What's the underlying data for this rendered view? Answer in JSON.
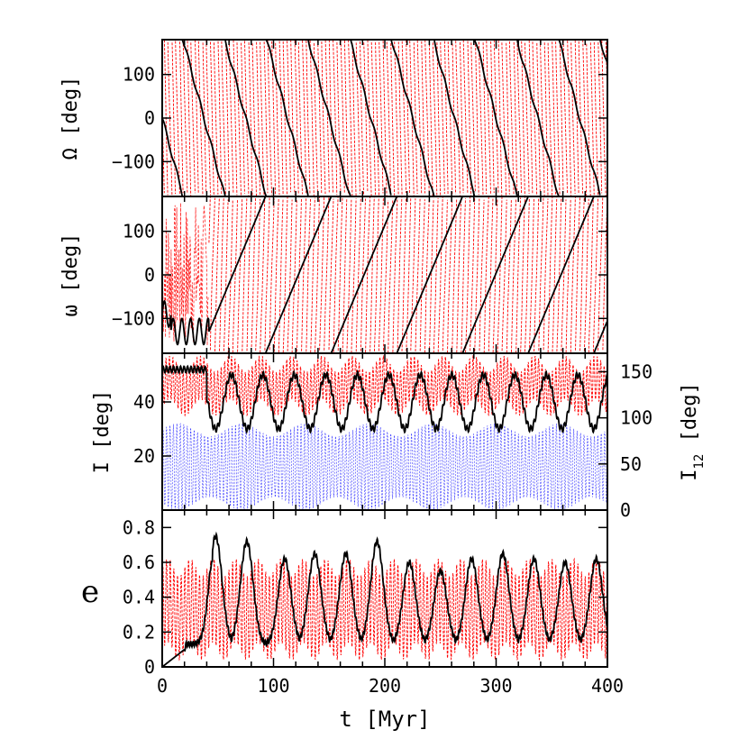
{
  "chart_data": [
    {
      "type": "line",
      "panel": "Omega",
      "ylabel": "Ω [deg]",
      "xlim": [
        0,
        400
      ],
      "ylim": [
        -180,
        180
      ],
      "yticks": [
        -100,
        0,
        100
      ],
      "ytick_labels": [
        "−100",
        "0",
        "100"
      ],
      "series": [
        {
          "name": "planet-1 node (black)",
          "color": "#000000",
          "kind": "wrap-decreasing",
          "start": 0,
          "period": 37.5,
          "values_desc": "circulates from +180 to -180 every ~37.5 Myr"
        },
        {
          "name": "planet-2 node (red)",
          "color": "#ff0000",
          "kind": "wrap-dense",
          "values_desc": "fast circulation, period ~3.5 Myr"
        }
      ]
    },
    {
      "type": "line",
      "panel": "omega",
      "ylabel": "ω [deg]",
      "xlim": [
        0,
        400
      ],
      "ylim": [
        -180,
        180
      ],
      "yticks": [
        -100,
        0,
        100
      ],
      "ytick_labels": [
        "−100",
        "0",
        "100"
      ],
      "series": [
        {
          "name": "planet-1 argument of pericenter (black)",
          "color": "#000000",
          "kind": "wrap-increasing",
          "values_desc": "librates near -130 until ~40 Myr then circulates upward every ~59 Myr"
        },
        {
          "name": "planet-2 argument of pericenter (red)",
          "color": "#ff0000",
          "kind": "wrap-dense"
        }
      ]
    },
    {
      "type": "line",
      "panel": "inclination",
      "ylabel": "I [deg]",
      "ylabel_right": "I",
      "ylabel_right_sub": "12",
      "ylabel_right_tail": " [deg]",
      "xlim": [
        0,
        400
      ],
      "ylim": [
        0,
        58
      ],
      "yticks": [
        20,
        40
      ],
      "ytick_labels": [
        "20",
        "40"
      ],
      "ylim_right": [
        0,
        170
      ],
      "yticks_right": [
        0,
        50,
        100,
        150
      ],
      "ytick_labels_right": [
        "0",
        "50",
        "100",
        "150"
      ],
      "series": [
        {
          "name": "I planet-1 (black)",
          "color": "#000000",
          "values_desc": "~52 deg until 40 Myr, then oscillates 30–50 deg with period ~28 Myr"
        },
        {
          "name": "I planet-2 (red)",
          "color": "#ff0000",
          "values_desc": "dense oscillation between ~38 and ~55 deg"
        },
        {
          "name": "mutual inclination I12 (blue, right axis)",
          "color": "#3333ff",
          "values_desc": "dense oscillation between ~0 and ~95 deg"
        }
      ]
    },
    {
      "type": "line",
      "panel": "eccentricity",
      "ylabel": "e",
      "xlim": [
        0,
        400
      ],
      "ylim": [
        0,
        0.9
      ],
      "yticks": [
        0,
        0.2,
        0.4,
        0.6,
        0.8
      ],
      "ytick_labels": [
        "0",
        "0.2",
        "0.4",
        "0.6",
        "0.8"
      ],
      "xticks": [
        0,
        100,
        200,
        300,
        400
      ],
      "xtick_labels": [
        "0",
        "100",
        "200",
        "300",
        "400"
      ],
      "xlabel": "t [Myr]",
      "series": [
        {
          "name": "e planet-1 (black)",
          "color": "#000000",
          "values_desc": "~0 until 20 Myr, then peaks ~0.75 at 48 Myr and periodic peaks 0.62–0.72 every ~28 Myr, troughs ~0.1–0.2"
        },
        {
          "name": "e planet-2 (red)",
          "color": "#ff0000",
          "values_desc": "dense oscillation between ~0.05 and ~0.6"
        }
      ]
    }
  ]
}
